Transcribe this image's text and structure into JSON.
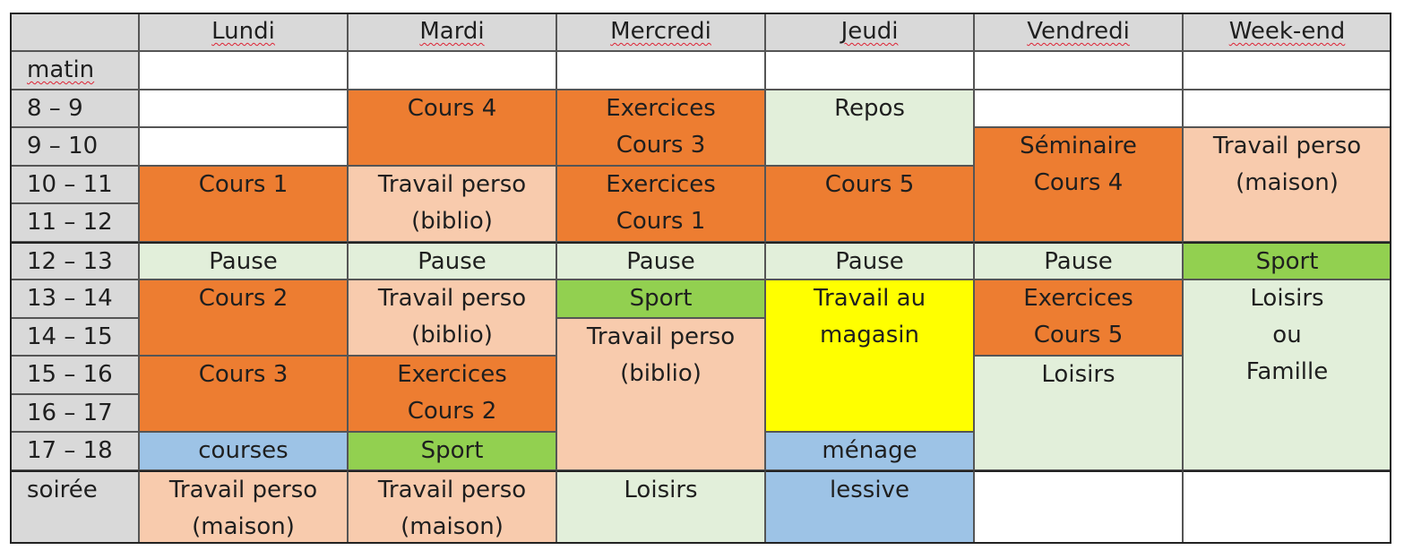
{
  "colors": {
    "header": "#d9d9d9",
    "cours": "#ed7d31",
    "perso": "#f8cbad",
    "pause": "#e2efda",
    "sport": "#92d050",
    "magasin": "#ffff00",
    "menage": "#9dc3e6",
    "empty": "#ffffff"
  },
  "days": [
    "Lundi",
    "Mardi",
    "Mercredi",
    "Jeudi",
    "Vendredi",
    "Week-end"
  ],
  "rows": [
    "matin",
    "8 – 9",
    "9 – 10",
    "10 – 11",
    "11 – 12",
    "12 – 13",
    "13 – 14",
    "14 – 15",
    "15 – 16",
    "16 – 17",
    "17 – 18",
    "soirée"
  ],
  "blocks": [
    {
      "day": 0,
      "start": 1,
      "span": 1,
      "lines": [],
      "color": "empty"
    },
    {
      "day": 1,
      "start": 1,
      "span": 1,
      "lines": [],
      "color": "empty"
    },
    {
      "day": 2,
      "start": 1,
      "span": 1,
      "lines": [],
      "color": "empty"
    },
    {
      "day": 3,
      "start": 1,
      "span": 1,
      "lines": [],
      "color": "empty"
    },
    {
      "day": 4,
      "start": 1,
      "span": 1,
      "lines": [],
      "color": "empty"
    },
    {
      "day": 5,
      "start": 1,
      "span": 1,
      "lines": [],
      "color": "empty"
    },
    {
      "day": 0,
      "start": 2,
      "span": 1,
      "lines": [],
      "color": "empty"
    },
    {
      "day": 0,
      "start": 3,
      "span": 1,
      "lines": [],
      "color": "empty"
    },
    {
      "day": 0,
      "start": 4,
      "span": 2,
      "lines": [
        "Cours 1"
      ],
      "color": "cours"
    },
    {
      "day": 0,
      "start": 6,
      "span": 1,
      "lines": [
        "Pause"
      ],
      "color": "pause"
    },
    {
      "day": 0,
      "start": 7,
      "span": 2,
      "lines": [
        "Cours 2"
      ],
      "color": "cours"
    },
    {
      "day": 0,
      "start": 9,
      "span": 2,
      "lines": [
        "Cours 3"
      ],
      "color": "cours"
    },
    {
      "day": 0,
      "start": 11,
      "span": 1,
      "lines": [
        "courses"
      ],
      "color": "menage"
    },
    {
      "day": 0,
      "start": 12,
      "span": 2,
      "lines": [
        "Travail perso",
        "(maison)"
      ],
      "color": "perso"
    },
    {
      "day": 1,
      "start": 2,
      "span": 2,
      "lines": [
        "Cours 4"
      ],
      "color": "cours"
    },
    {
      "day": 1,
      "start": 4,
      "span": 2,
      "lines": [
        "Travail perso",
        "(biblio)"
      ],
      "color": "perso"
    },
    {
      "day": 1,
      "start": 6,
      "span": 1,
      "lines": [
        "Pause"
      ],
      "color": "pause"
    },
    {
      "day": 1,
      "start": 7,
      "span": 2,
      "lines": [
        "Travail perso",
        "(biblio)"
      ],
      "color": "perso"
    },
    {
      "day": 1,
      "start": 9,
      "span": 2,
      "lines": [
        "Exercices",
        "Cours 2"
      ],
      "color": "cours"
    },
    {
      "day": 1,
      "start": 11,
      "span": 1,
      "lines": [
        "Sport"
      ],
      "color": "sport"
    },
    {
      "day": 1,
      "start": 12,
      "span": 2,
      "lines": [
        "Travail perso",
        "(maison)"
      ],
      "color": "perso"
    },
    {
      "day": 2,
      "start": 2,
      "span": 2,
      "lines": [
        "Exercices",
        "Cours 3"
      ],
      "color": "cours"
    },
    {
      "day": 2,
      "start": 4,
      "span": 2,
      "lines": [
        "Exercices",
        "Cours 1"
      ],
      "color": "cours"
    },
    {
      "day": 2,
      "start": 6,
      "span": 1,
      "lines": [
        "Pause"
      ],
      "color": "pause"
    },
    {
      "day": 2,
      "start": 7,
      "span": 1,
      "lines": [
        "Sport"
      ],
      "color": "sport"
    },
    {
      "day": 2,
      "start": 8,
      "span": 4,
      "lines": [
        "Travail perso",
        "(biblio)"
      ],
      "color": "perso"
    },
    {
      "day": 2,
      "start": 12,
      "span": 2,
      "lines": [
        "Loisirs"
      ],
      "color": "pause"
    },
    {
      "day": 3,
      "start": 2,
      "span": 2,
      "lines": [
        "Repos"
      ],
      "color": "pause"
    },
    {
      "day": 3,
      "start": 4,
      "span": 2,
      "lines": [
        "Cours 5"
      ],
      "color": "cours"
    },
    {
      "day": 3,
      "start": 6,
      "span": 1,
      "lines": [
        "Pause"
      ],
      "color": "pause"
    },
    {
      "day": 3,
      "start": 7,
      "span": 4,
      "lines": [
        "Travail au",
        "magasin"
      ],
      "color": "magasin"
    },
    {
      "day": 3,
      "start": 11,
      "span": 1,
      "lines": [
        "ménage"
      ],
      "color": "menage"
    },
    {
      "day": 3,
      "start": 12,
      "span": 2,
      "lines": [
        "lessive"
      ],
      "color": "menage"
    },
    {
      "day": 4,
      "start": 2,
      "span": 1,
      "lines": [],
      "color": "empty"
    },
    {
      "day": 4,
      "start": 3,
      "span": 3,
      "lines": [
        "Séminaire",
        "Cours 4"
      ],
      "color": "cours"
    },
    {
      "day": 4,
      "start": 6,
      "span": 1,
      "lines": [
        "Pause"
      ],
      "color": "pause"
    },
    {
      "day": 4,
      "start": 7,
      "span": 2,
      "lines": [
        "Exercices",
        "Cours 5"
      ],
      "color": "cours"
    },
    {
      "day": 4,
      "start": 9,
      "span": 3,
      "lines": [
        "Loisirs"
      ],
      "color": "pause"
    },
    {
      "day": 4,
      "start": 12,
      "span": 2,
      "lines": [],
      "color": "empty"
    },
    {
      "day": 5,
      "start": 2,
      "span": 1,
      "lines": [],
      "color": "empty"
    },
    {
      "day": 5,
      "start": 3,
      "span": 3,
      "lines": [
        "Travail perso",
        "(maison)"
      ],
      "color": "perso"
    },
    {
      "day": 5,
      "start": 6,
      "span": 1,
      "lines": [
        "Sport"
      ],
      "color": "sport"
    },
    {
      "day": 5,
      "start": 7,
      "span": 5,
      "lines": [
        "Loisirs",
        "ou",
        "Famille"
      ],
      "color": "pause"
    },
    {
      "day": 5,
      "start": 12,
      "span": 2,
      "lines": [],
      "color": "empty"
    }
  ]
}
